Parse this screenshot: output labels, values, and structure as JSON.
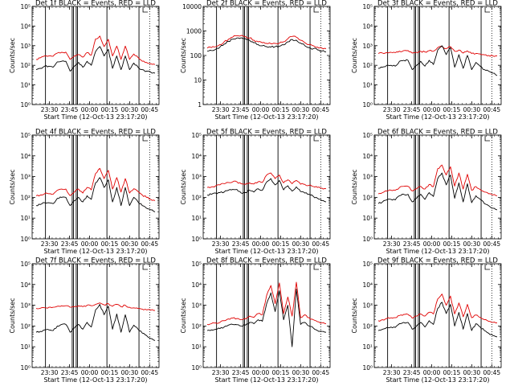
{
  "colors": {
    "events": "#000000",
    "lld": "#e00000",
    "axes": "#000000",
    "background": "#ffffff"
  },
  "chart_data": [
    {
      "type": "line",
      "title": "Det 1f BLACK = Events, RED = LLD",
      "xlabel": "Start Time (12-Oct-13 23:17:20)",
      "ylabel": "Counts/sec",
      "yscale": "log",
      "ylim": [
        1,
        100000
      ],
      "ytick_labels": [
        "10⁰",
        "10¹",
        "10²",
        "10³",
        "10⁴",
        "10⁵"
      ],
      "xlim": [
        0,
        95
      ],
      "xtick_positions": [
        13,
        28,
        43,
        58,
        73,
        88
      ],
      "xtick_labels": [
        "23:30",
        "23:45",
        "00:00",
        "00:15",
        "00:30",
        "00:45"
      ],
      "markers_solid": [
        10,
        30,
        31,
        33,
        34,
        56,
        80
      ],
      "markers_dotted": [
        88
      ],
      "series": [
        {
          "values": [
            200,
            240,
            300,
            300,
            290,
            420,
            460,
            470,
            200,
            300,
            350,
            260,
            450,
            330,
            2200,
            3100,
            900,
            2100,
            300,
            950,
            200,
            950,
            200,
            380,
            250,
            160,
            140,
            120,
            110
          ]
        },
        {
          "values": [
            60,
            70,
            90,
            90,
            80,
            150,
            160,
            160,
            50,
            90,
            140,
            80,
            160,
            100,
            500,
            900,
            300,
            650,
            70,
            300,
            60,
            300,
            60,
            130,
            80,
            60,
            50,
            45,
            40
          ]
        }
      ]
    },
    {
      "type": "line",
      "title": "Det 2f BLACK = Events, RED = LLD",
      "xlabel": "Start Time (12-Oct-13 23:17:20)",
      "ylabel": "Counts/sec",
      "yscale": "log",
      "ylim": [
        1,
        10000
      ],
      "ytick_labels": [
        "1",
        "10",
        "100",
        "1000",
        "10000"
      ],
      "xlim": [
        0,
        95
      ],
      "xtick_positions": [
        13,
        28,
        43,
        58,
        73,
        88
      ],
      "xtick_labels": [
        "23:30",
        "23:45",
        "00:00",
        "00:15",
        "00:30",
        "00:45"
      ],
      "markers_solid": [
        10,
        30,
        31,
        33,
        34,
        56,
        80
      ],
      "markers_dotted": [
        88
      ],
      "series": [
        {
          "values": [
            200,
            210,
            230,
            280,
            360,
            460,
            560,
            640,
            660,
            600,
            520,
            420,
            360,
            330,
            310,
            300,
            310,
            320,
            360,
            480,
            600,
            560,
            420,
            330,
            280,
            250,
            220,
            200,
            190
          ]
        },
        {
          "values": [
            150,
            160,
            180,
            220,
            290,
            380,
            460,
            520,
            530,
            480,
            410,
            330,
            280,
            250,
            230,
            220,
            230,
            240,
            270,
            360,
            450,
            420,
            320,
            250,
            210,
            190,
            170,
            150,
            140
          ]
        }
      ]
    },
    {
      "type": "line",
      "title": "Det 3f BLACK = Events, RED = LLD",
      "xlabel": "Start Time (12-Oct-13 23:17:20)",
      "ylabel": "Counts/sec",
      "yscale": "log",
      "ylim": [
        1,
        100000
      ],
      "ytick_labels": [
        "10⁰",
        "10¹",
        "10²",
        "10³",
        "10⁴",
        "10⁵"
      ],
      "xlim": [
        0,
        95
      ],
      "xtick_positions": [
        13,
        28,
        43,
        58,
        73,
        88
      ],
      "xtick_labels": [
        "23:30",
        "23:45",
        "00:00",
        "00:15",
        "00:30",
        "00:45"
      ],
      "markers_solid": [
        10,
        30,
        31,
        33,
        34,
        56,
        80
      ],
      "markers_dotted": [
        88
      ],
      "series": [
        {
          "values": [
            400,
            420,
            450,
            460,
            440,
            520,
            560,
            560,
            420,
            460,
            520,
            480,
            560,
            520,
            800,
            900,
            700,
            900,
            520,
            600,
            420,
            540,
            400,
            400,
            380,
            340,
            320,
            300,
            300
          ]
        },
        {
          "values": [
            70,
            80,
            100,
            100,
            90,
            160,
            180,
            180,
            60,
            100,
            160,
            90,
            180,
            110,
            600,
            1000,
            350,
            800,
            80,
            350,
            70,
            320,
            60,
            140,
            90,
            60,
            50,
            40,
            30
          ]
        }
      ]
    },
    {
      "type": "line",
      "title": "Det 4f BLACK = Events, RED = LLD",
      "xlabel": "Start Time (12-Oct-13 23:17:20)",
      "ylabel": "Counts/sec",
      "yscale": "log",
      "ylim": [
        1,
        100000
      ],
      "ytick_labels": [
        "10⁰",
        "10¹",
        "10²",
        "10³",
        "10⁴",
        "10⁵"
      ],
      "xlim": [
        0,
        95
      ],
      "xtick_positions": [
        13,
        28,
        43,
        58,
        73,
        88
      ],
      "xtick_labels": [
        "23:30",
        "23:45",
        "00:00",
        "00:15",
        "00:30",
        "00:45"
      ],
      "markers_solid": [
        10,
        30,
        31,
        33,
        34,
        56,
        80
      ],
      "markers_dotted": [
        88
      ],
      "series": [
        {
          "values": [
            120,
            130,
            150,
            150,
            140,
            220,
            250,
            250,
            120,
            180,
            250,
            160,
            300,
            230,
            1400,
            2500,
            800,
            2000,
            250,
            900,
            180,
            800,
            160,
            260,
            190,
            130,
            100,
            80,
            70
          ]
        },
        {
          "values": [
            40,
            45,
            55,
            55,
            50,
            90,
            100,
            100,
            40,
            70,
            100,
            60,
            120,
            80,
            500,
            900,
            300,
            700,
            60,
            300,
            40,
            300,
            40,
            100,
            60,
            40,
            30,
            25,
            20
          ]
        }
      ]
    },
    {
      "type": "line",
      "title": "Det 5f BLACK = Events, RED = LLD",
      "xlabel": "Start Time (12-Oct-13 23:17:20)",
      "ylabel": "Counts/sec",
      "yscale": "log",
      "ylim": [
        1,
        100000
      ],
      "ytick_labels": [
        "10⁰",
        "10¹",
        "10²",
        "10³",
        "10⁴",
        "10⁵"
      ],
      "xlim": [
        0,
        95
      ],
      "xtick_positions": [
        13,
        28,
        43,
        58,
        73,
        88
      ],
      "xtick_labels": [
        "23:30",
        "23:45",
        "00:00",
        "00:15",
        "00:30",
        "00:45"
      ],
      "markers_solid": [
        10,
        30,
        31,
        33,
        34,
        56,
        80
      ],
      "markers_dotted": [
        88
      ],
      "series": [
        {
          "values": [
            300,
            320,
            360,
            400,
            450,
            520,
            560,
            560,
            450,
            420,
            500,
            440,
            560,
            520,
            1200,
            1500,
            800,
            1200,
            500,
            700,
            450,
            650,
            430,
            420,
            380,
            330,
            300,
            280,
            260
          ]
        },
        {
          "values": [
            130,
            140,
            160,
            170,
            180,
            220,
            240,
            240,
            160,
            170,
            220,
            180,
            260,
            220,
            550,
            800,
            400,
            650,
            230,
            360,
            200,
            320,
            190,
            160,
            140,
            110,
            90,
            70,
            60
          ]
        }
      ]
    },
    {
      "type": "line",
      "title": "Det 6f BLACK = Events, RED = LLD",
      "xlabel": "Start Time (12-Oct-13 23:17:20)",
      "ylabel": "Counts/sec",
      "yscale": "log",
      "ylim": [
        1,
        100000
      ],
      "ytick_labels": [
        "10⁰",
        "10¹",
        "10²",
        "10³",
        "10⁴",
        "10⁵"
      ],
      "xlim": [
        0,
        95
      ],
      "xtick_positions": [
        13,
        28,
        43,
        58,
        73,
        88
      ],
      "xtick_labels": [
        "23:30",
        "23:45",
        "00:00",
        "00:15",
        "00:30",
        "00:45"
      ],
      "markers_solid": [
        10,
        30,
        31,
        33,
        34,
        56,
        80
      ],
      "markers_dotted": [
        88
      ],
      "series": [
        {
          "values": [
            150,
            170,
            200,
            220,
            220,
            300,
            340,
            340,
            200,
            260,
            340,
            250,
            420,
            330,
            2400,
            3600,
            1200,
            3000,
            350,
            1500,
            250,
            1300,
            220,
            330,
            240,
            180,
            150,
            130,
            120
          ]
        },
        {
          "values": [
            50,
            60,
            75,
            80,
            75,
            120,
            140,
            140,
            60,
            90,
            140,
            80,
            170,
            110,
            800,
            1500,
            400,
            1200,
            90,
            500,
            60,
            450,
            55,
            120,
            80,
            50,
            40,
            30,
            25
          ]
        }
      ]
    },
    {
      "type": "line",
      "title": "Det 7f BLACK = Events, RED = LLD",
      "xlabel": "Start Time (12-Oct-13 23:17:20)",
      "ylabel": "Counts/sec",
      "yscale": "log",
      "ylim": [
        1,
        100000
      ],
      "ytick_labels": [
        "10⁰",
        "10¹",
        "10²",
        "10³",
        "10⁴",
        "10⁵"
      ],
      "xlim": [
        0,
        95
      ],
      "xtick_positions": [
        13,
        28,
        43,
        58,
        73,
        88
      ],
      "xtick_labels": [
        "23:30",
        "23:45",
        "00:00",
        "00:15",
        "00:30",
        "00:45"
      ],
      "markers_solid": [
        10,
        30,
        31,
        33,
        34,
        56,
        80
      ],
      "markers_dotted": [
        88
      ],
      "series": [
        {
          "values": [
            700,
            720,
            760,
            800,
            800,
            900,
            950,
            950,
            800,
            850,
            950,
            850,
            1000,
            950,
            1100,
            1300,
            1050,
            1200,
            900,
            1100,
            850,
            1000,
            800,
            750,
            700,
            650,
            600,
            580,
            560
          ]
        },
        {
          "values": [
            50,
            55,
            65,
            65,
            60,
            100,
            120,
            120,
            50,
            80,
            120,
            70,
            150,
            90,
            600,
            1100,
            350,
            900,
            70,
            380,
            50,
            350,
            50,
            110,
            70,
            45,
            35,
            25,
            20
          ]
        }
      ]
    },
    {
      "type": "line",
      "title": "Det 8f BLACK = Events, RED = LLD",
      "xlabel": "Start Time (12-Oct-13 23:17:20)",
      "ylabel": "Counts/sec",
      "yscale": "log",
      "ylim": [
        1,
        100000
      ],
      "ytick_labels": [
        "10⁰",
        "10¹",
        "10²",
        "10³",
        "10⁴",
        "10⁵"
      ],
      "xlim": [
        0,
        95
      ],
      "xtick_positions": [
        13,
        28,
        43,
        58,
        73,
        88
      ],
      "xtick_labels": [
        "23:30",
        "23:45",
        "00:00",
        "00:15",
        "00:30",
        "00:45"
      ],
      "markers_solid": [
        10,
        30,
        31,
        33,
        34,
        56,
        80
      ],
      "markers_dotted": [
        88
      ],
      "series": [
        {
          "values": [
            120,
            130,
            140,
            150,
            180,
            220,
            240,
            230,
            200,
            220,
            300,
            260,
            400,
            350,
            3000,
            9000,
            1200,
            12000,
            400,
            2500,
            300,
            13000,
            250,
            350,
            250,
            200,
            160,
            140,
            130
          ]
        },
        {
          "values": [
            60,
            65,
            70,
            75,
            90,
            110,
            120,
            115,
            100,
            110,
            150,
            130,
            200,
            170,
            1200,
            4000,
            500,
            5000,
            200,
            1000,
            10,
            6000,
            120,
            150,
            100,
            80,
            60,
            55,
            50
          ]
        }
      ]
    },
    {
      "type": "line",
      "title": "Det 9f BLACK = Events, RED = LLD",
      "xlabel": "Start Time (12-Oct-13 23:17:20)",
      "ylabel": "Counts/sec",
      "yscale": "log",
      "ylim": [
        1,
        100000
      ],
      "ytick_labels": [
        "10⁰",
        "10¹",
        "10²",
        "10³",
        "10⁴",
        "10⁵"
      ],
      "xlim": [
        0,
        95
      ],
      "xtick_positions": [
        13,
        28,
        43,
        58,
        73,
        88
      ],
      "xtick_labels": [
        "23:30",
        "23:45",
        "00:00",
        "00:15",
        "00:30",
        "00:45"
      ],
      "markers_solid": [
        10,
        30,
        31,
        33,
        34,
        56,
        80
      ],
      "markers_dotted": [
        88
      ],
      "series": [
        {
          "values": [
            180,
            200,
            230,
            250,
            250,
            320,
            360,
            360,
            240,
            300,
            380,
            300,
            460,
            380,
            2000,
            3500,
            1000,
            2800,
            380,
            1300,
            280,
            1100,
            250,
            340,
            260,
            200,
            170,
            150,
            140
          ]
        },
        {
          "values": [
            60,
            70,
            85,
            90,
            85,
            130,
            150,
            150,
            70,
            100,
            150,
            90,
            180,
            120,
            700,
            1400,
            400,
            1100,
            100,
            450,
            70,
            400,
            60,
            130,
            90,
            60,
            45,
            35,
            30
          ]
        }
      ]
    }
  ]
}
